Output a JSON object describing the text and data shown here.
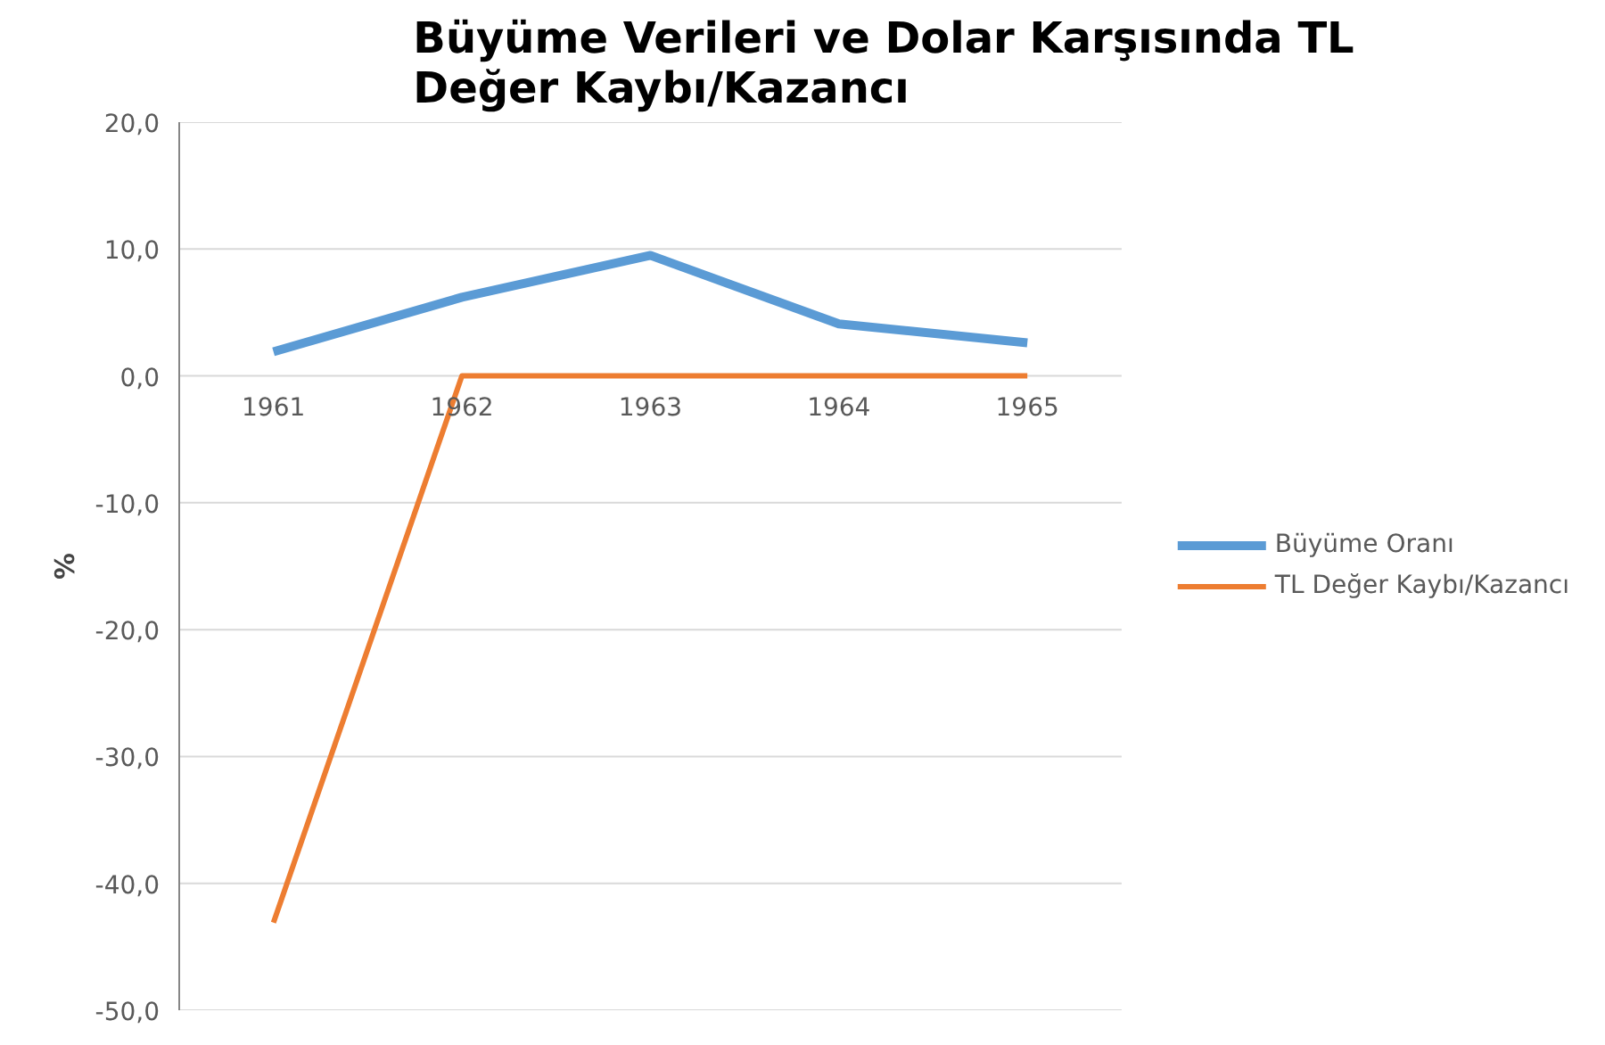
{
  "chart_data": {
    "type": "line",
    "title": "Büyüme Verileri ve Dolar Karşısında TL Değer Kaybı/Kazancı",
    "ylabel": "%",
    "categories": [
      "1961",
      "1962",
      "1963",
      "1964",
      "1965"
    ],
    "series": [
      {
        "name": "Büyüme Oranı",
        "color": "#5b9bd5",
        "values": [
          1.9,
          6.2,
          9.5,
          4.1,
          2.6
        ]
      },
      {
        "name": "TL Değer Kaybı/Kazancı",
        "color": "#ed7d31",
        "values": [
          -43.1,
          0,
          0,
          0,
          0
        ]
      }
    ],
    "ylim": [
      -50,
      20
    ],
    "yticks": [
      {
        "value": -50,
        "label": "-50,0"
      },
      {
        "value": -40,
        "label": "-40,0"
      },
      {
        "value": -30,
        "label": "-30,0"
      },
      {
        "value": -20,
        "label": "-20,0"
      },
      {
        "value": -10,
        "label": "-10,0"
      },
      {
        "value": 0,
        "label": "0,0"
      },
      {
        "value": 10,
        "label": "10,0"
      },
      {
        "value": 20,
        "label": "20,0"
      }
    ],
    "grid": "y",
    "legend": "right",
    "marker": "none",
    "line_style": "solid"
  }
}
